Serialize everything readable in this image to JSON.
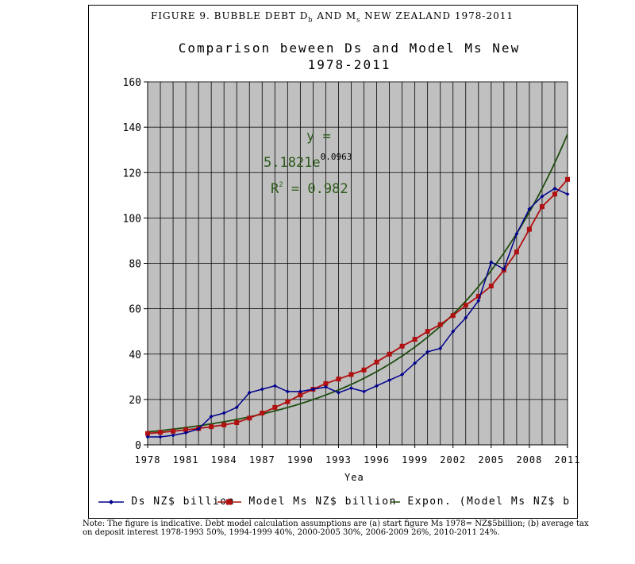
{
  "figure_caption": {
    "prefix": "FIGURE 9. BUBBLE DEBT D",
    "sub_d": "b",
    "middle": " AND M",
    "sub_m": "s",
    "suffix": " NEW ZEALAND 1978-2011"
  },
  "equation": {
    "y_line": "y =",
    "coef": "5.1821e",
    "exp": "0.0963",
    "r2_prefix": "R",
    "r2_sup": "2",
    "r2_value": " = 0.982"
  },
  "legend": {
    "ds": "Ds NZ$ billion",
    "ms": "Model Ms NZ$ billion",
    "expon": "Expon. (Model Ms NZ$ b"
  },
  "note": "Note: The figure is indicative. Debt model calculation assumptions are (a) start figure Ms 1978= NZ$5billion; (b) average tax on deposit interest 1978-1993 50%, 1994-1999 40%, 2000-2005 30%, 2006-2009 26%, 2010-2011 24%.",
  "colors": {
    "plot_bg": "#c0c0c0",
    "ds": "#00008b",
    "ms": "#b01010",
    "trend": "#1e4d0f"
  },
  "chart_data": {
    "type": "line",
    "title": "Comparison beween Ds and Model Ms New 1978-2011",
    "xlabel": "Yea",
    "ylabel": "",
    "ylim": [
      0,
      160
    ],
    "yticks": [
      0,
      20,
      40,
      60,
      80,
      100,
      120,
      140,
      160
    ],
    "xlim": [
      1978,
      2011
    ],
    "xticks": [
      1978,
      1981,
      1984,
      1987,
      1990,
      1993,
      1996,
      1999,
      2002,
      2005,
      2008,
      2011
    ],
    "grid": true,
    "legend_position": "bottom",
    "x": [
      1978,
      1979,
      1980,
      1981,
      1982,
      1983,
      1984,
      1985,
      1986,
      1987,
      1988,
      1989,
      1990,
      1991,
      1992,
      1993,
      1994,
      1995,
      1996,
      1997,
      1998,
      1999,
      2000,
      2001,
      2002,
      2003,
      2004,
      2005,
      2006,
      2007,
      2008,
      2009,
      2010,
      2011
    ],
    "series": [
      {
        "name": "Ds NZ$ billion",
        "values": [
          3.5,
          3.5,
          4.2,
          5.3,
          7.0,
          12.5,
          14.0,
          16.5,
          23.0,
          24.5,
          26.0,
          23.5,
          23.5,
          24.5,
          25.5,
          23.0,
          25.0,
          23.5,
          26.0,
          28.5,
          31.0,
          36.0,
          41.0,
          42.5,
          50.0,
          56.0,
          63.5,
          80.5,
          77.5,
          93.0,
          104.0,
          109.5,
          113.0,
          110.5
        ]
      },
      {
        "name": "Model Ms NZ$ billion",
        "values": [
          5.0,
          5.5,
          6.0,
          6.6,
          7.2,
          8.0,
          8.8,
          9.8,
          11.8,
          14.0,
          16.5,
          19.0,
          22.0,
          24.5,
          27.0,
          29.0,
          31.0,
          33.0,
          36.5,
          40.0,
          43.5,
          46.5,
          50.0,
          53.0,
          57.0,
          61.5,
          65.5,
          70.0,
          77.0,
          85.0,
          95.0,
          105.0,
          110.5,
          117.0
        ]
      },
      {
        "name": "Expon. (Model Ms NZ$ billion)",
        "equation": "y = 5.1821e0.0963x",
        "r_squared": 0.982,
        "coefficient": 5.1821,
        "exponent": 0.0963
      }
    ]
  }
}
